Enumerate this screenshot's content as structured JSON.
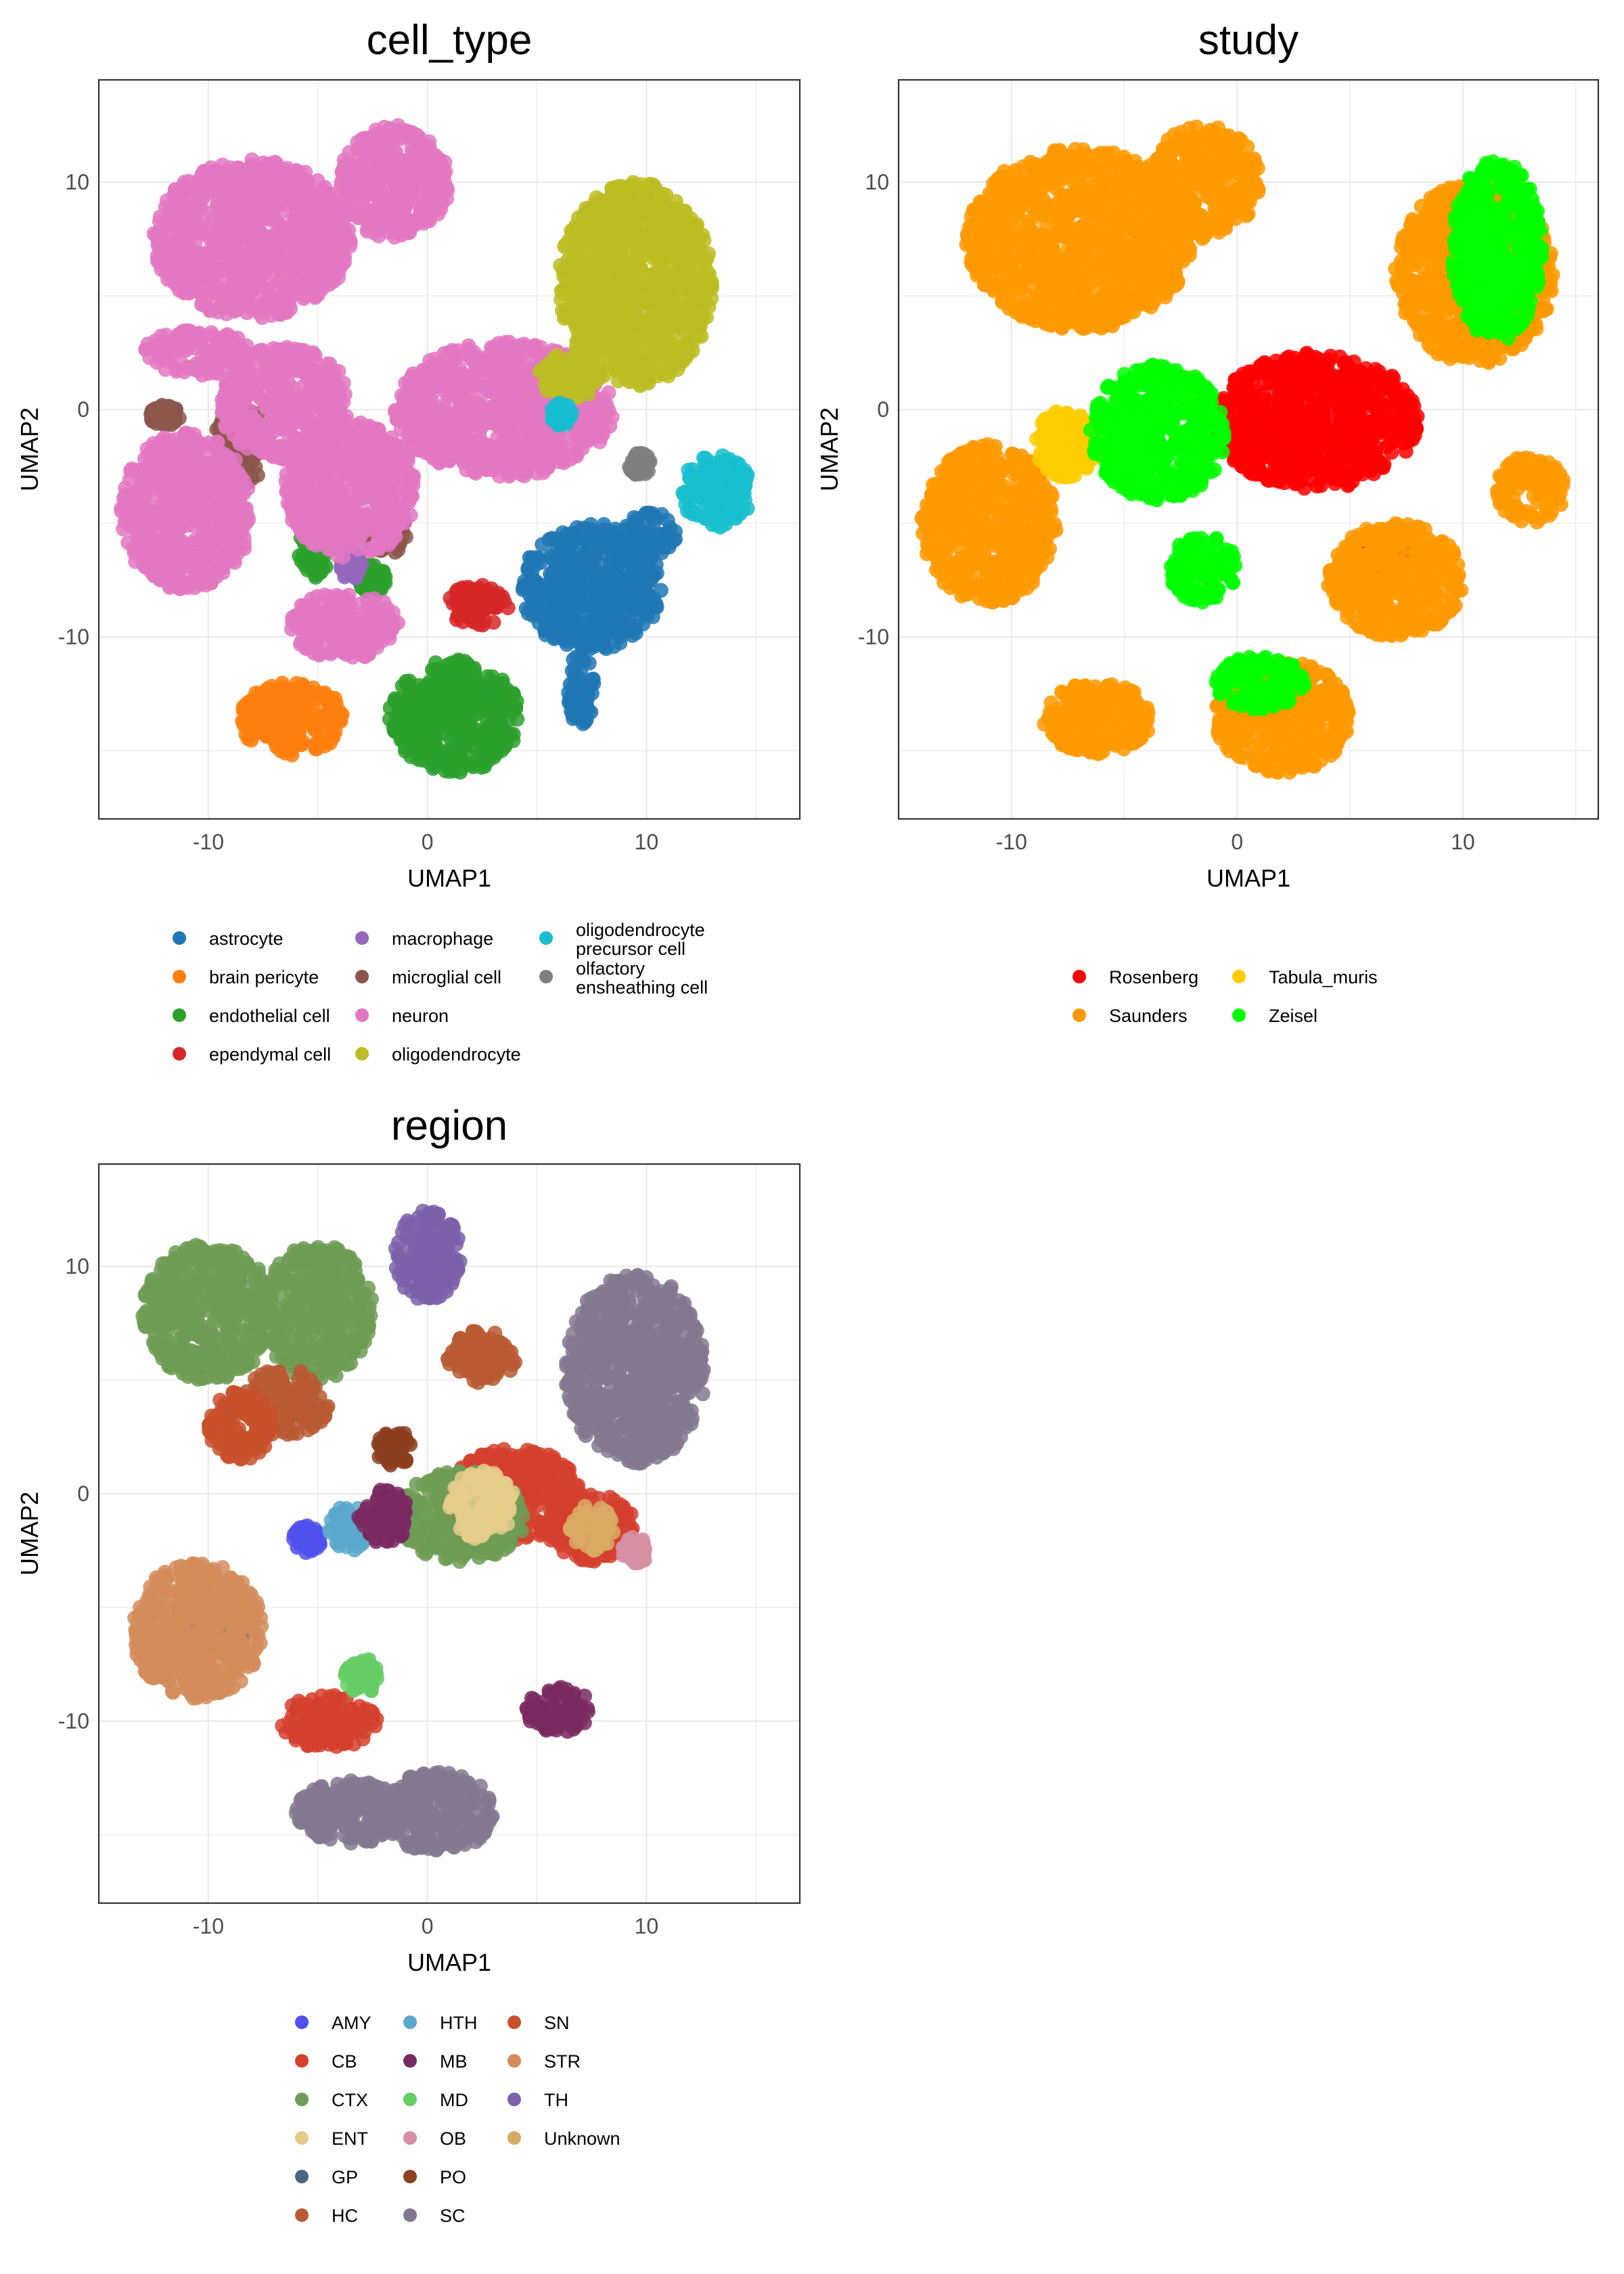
{
  "chart_data": [
    {
      "type": "scatter",
      "title": "cell_type",
      "xlabel": "UMAP1",
      "ylabel": "UMAP2",
      "xlim": [
        -15,
        17
      ],
      "ylim": [
        -18,
        14.5
      ],
      "xticks": [
        -10,
        0,
        10
      ],
      "yticks": [
        10,
        0,
        -10
      ],
      "grid": true,
      "legend_position": "bottom",
      "series": [
        {
          "name": "astrocyte",
          "color": "#1f77b4",
          "regions": [
            [
              7.5,
              -7.8,
              3.2,
              2.8
            ],
            [
              10.2,
              -5.5,
              1.2,
              1.0
            ],
            [
              7,
              -12.3,
              0.6,
              1.6
            ]
          ]
        },
        {
          "name": "brain pericyte",
          "color": "#ff7f0e",
          "regions": [
            [
              -6.2,
              -13.6,
              2.4,
              1.6
            ],
            [
              0,
              -13.3,
              1.4,
              0.8
            ]
          ]
        },
        {
          "name": "endothelial cell",
          "color": "#2ca02c",
          "regions": [
            [
              1.2,
              -13.5,
              3,
              2.5
            ],
            [
              -5.1,
              -6.2,
              0.8,
              1.2
            ],
            [
              -2.5,
              -7.5,
              0.6,
              0.7
            ]
          ]
        },
        {
          "name": "ependymal cell",
          "color": "#d62728",
          "regions": [
            [
              2.3,
              -8.6,
              1.4,
              0.9
            ]
          ]
        },
        {
          "name": "macrophage",
          "color": "#9467bd",
          "regions": [
            [
              -3.5,
              -6.8,
              0.5,
              0.7
            ]
          ]
        },
        {
          "name": "microglial cell",
          "color": "#8c564b",
          "regions": [
            [
              -8.5,
              -1.5,
              1.2,
              1.8
            ],
            [
              -1.8,
              -5.5,
              1,
              0.9
            ],
            [
              -12,
              -0.3,
              0.7,
              0.5
            ]
          ]
        },
        {
          "name": "neuron",
          "color": "#e377c2",
          "regions": [
            [
              -8,
              7.5,
              4.5,
              3.5
            ],
            [
              -1.5,
              10,
              2.5,
              2.5
            ],
            [
              -11,
              -4.5,
              3,
              3.5
            ],
            [
              3.5,
              0,
              5,
              3
            ],
            [
              -3.5,
              -3.5,
              3,
              3
            ],
            [
              -3.8,
              -9.5,
              2.5,
              1.5
            ],
            [
              -6.5,
              0.3,
              3,
              2.5
            ],
            [
              -10.5,
              2.5,
              2.5,
              1
            ]
          ]
        },
        {
          "name": "oligodendrocyte",
          "color": "#bcbd22",
          "regions": [
            [
              9.5,
              5.5,
              3.5,
              4.5
            ],
            [
              6.5,
              1.5,
              1.5,
              1
            ]
          ]
        },
        {
          "name": "oligodendrocyte\nprecursor cell",
          "color": "#17becf",
          "regions": [
            [
              13.2,
              -3.6,
              1.6,
              1.6
            ],
            [
              6.1,
              -0.2,
              0.5,
              0.5
            ]
          ]
        },
        {
          "name": "olfactory\nensheathing cell",
          "color": "#7f7f7f",
          "regions": [
            [
              9.7,
              -2.4,
              0.5,
              0.5
            ]
          ]
        }
      ]
    },
    {
      "type": "scatter",
      "title": "study",
      "xlabel": "UMAP1",
      "ylabel": "UMAP2",
      "xlim": [
        -15,
        16
      ],
      "ylim": [
        -18,
        14.5
      ],
      "xticks": [
        -10,
        0,
        10
      ],
      "yticks": [
        10,
        0,
        -10
      ],
      "grid": true,
      "legend_position": "bottom",
      "series": [
        {
          "name": "Rosenberg",
          "color": "#ff0000",
          "regions": [
            [
              3.5,
              -0.5,
              4.5,
              3
            ],
            [
              6.5,
              -6,
              1,
              1
            ]
          ]
        },
        {
          "name": "Saunders",
          "color": "#ff9900",
          "regions": [
            [
              -7,
              7.5,
              5,
              4
            ],
            [
              -1.5,
              10,
              2.5,
              2.5
            ],
            [
              -11,
              -5,
              3,
              3.5
            ],
            [
              10.5,
              6,
              3.5,
              4
            ],
            [
              2,
              -13.5,
              3,
              2.5
            ],
            [
              -6.2,
              -13.6,
              2.4,
              1.6
            ],
            [
              7,
              -7.5,
              3,
              2.5
            ],
            [
              13,
              -3.5,
              1.5,
              1.5
            ]
          ]
        },
        {
          "name": "Tabula_muris",
          "color": "#ffcc00",
          "regions": [
            [
              -7.5,
              -1.5,
              1.5,
              1.5
            ]
          ]
        },
        {
          "name": "Zeisel",
          "color": "#00ff00",
          "regions": [
            [
              -3.5,
              -1,
              3,
              3
            ],
            [
              -1.5,
              -7,
              1.5,
              1.5
            ],
            [
              11.5,
              7,
              2,
              4
            ],
            [
              1,
              -12,
              2,
              1.2
            ]
          ]
        }
      ]
    },
    {
      "type": "scatter",
      "title": "region",
      "xlabel": "UMAP1",
      "ylabel": "UMAP2",
      "xlim": [
        -15,
        17
      ],
      "ylim": [
        -18,
        14.5
      ],
      "xticks": [
        -10,
        0,
        10
      ],
      "yticks": [
        10,
        0,
        -10
      ],
      "grid": true,
      "legend_position": "bottom",
      "series": [
        {
          "name": "AMY",
          "color": "#5050ee",
          "regions": [
            [
              -5.5,
              -2,
              0.7,
              0.6
            ]
          ]
        },
        {
          "name": "CB",
          "color": "#d5402e",
          "regions": [
            [
              -4.5,
              -10,
              2.2,
              1.2
            ],
            [
              7.5,
              -1.5,
              2,
              1.5
            ],
            [
              4,
              0,
              3,
              2
            ]
          ]
        },
        {
          "name": "CTX",
          "color": "#6e9c55",
          "regions": [
            [
              -10,
              8,
              3,
              3
            ],
            [
              -5,
              8,
              2.5,
              3
            ],
            [
              1.5,
              -1,
              3,
              2
            ]
          ]
        },
        {
          "name": "ENT",
          "color": "#e6cc8c",
          "regions": [
            [
              2.5,
              -0.5,
              1.5,
              1.5
            ]
          ]
        },
        {
          "name": "GP",
          "color": "#4a6585",
          "regions": [
            [
              -9.5,
              -6,
              1.2,
              1.2
            ]
          ]
        },
        {
          "name": "HC",
          "color": "#b85b32",
          "regions": [
            [
              -6.5,
              4,
              2,
              1.5
            ],
            [
              2.5,
              6,
              1.6,
              1.2
            ]
          ]
        },
        {
          "name": "HTH",
          "color": "#5aa8cc",
          "regions": [
            [
              -3.5,
              -1.5,
              1,
              1
            ]
          ]
        },
        {
          "name": "MB",
          "color": "#7a2860",
          "regions": [
            [
              -2,
              -1,
              1.2,
              1.2
            ],
            [
              6,
              -9.5,
              1.5,
              1
            ]
          ]
        },
        {
          "name": "MD",
          "color": "#66cc66",
          "regions": [
            [
              -3,
              -8,
              0.8,
              0.8
            ]
          ]
        },
        {
          "name": "OB",
          "color": "#d78fa5",
          "regions": [
            [
              9.5,
              -2.5,
              0.6,
              0.6
            ]
          ]
        },
        {
          "name": "PO",
          "color": "#8c4020",
          "regions": [
            [
              -1.5,
              2,
              0.8,
              0.8
            ]
          ]
        },
        {
          "name": "SC",
          "color": "#82788f",
          "regions": [
            [
              9.5,
              5.5,
              3.2,
              4.2
            ],
            [
              -3.5,
              -14,
              2.5,
              1.4
            ],
            [
              0.5,
              -14,
              2.5,
              1.8
            ]
          ]
        },
        {
          "name": "SN",
          "color": "#c8502a",
          "regions": [
            [
              -8.5,
              3,
              1.5,
              1.5
            ]
          ]
        },
        {
          "name": "STR",
          "color": "#d48c5a",
          "regions": [
            [
              -10.5,
              -6,
              3,
              3
            ]
          ]
        },
        {
          "name": "TH",
          "color": "#7b60aa",
          "regions": [
            [
              0,
              10.5,
              1.5,
              2
            ]
          ]
        },
        {
          "name": "Unknown",
          "color": "#d9aa64",
          "regions": [
            [
              7.5,
              -1.5,
              1,
              1
            ]
          ]
        }
      ]
    }
  ]
}
